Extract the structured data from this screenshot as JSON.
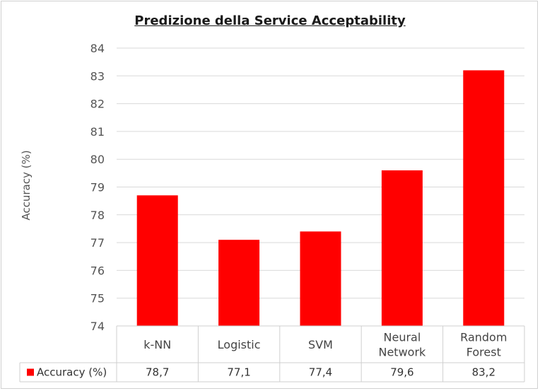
{
  "chart_data": {
    "type": "bar",
    "title": "Predizione della Service Acceptability",
    "xlabel": "",
    "ylabel": "Accuracy (%)",
    "ylim": [
      74,
      84
    ],
    "yticks": [
      74,
      75,
      76,
      77,
      78,
      79,
      80,
      81,
      82,
      83,
      84
    ],
    "grid": true,
    "categories": [
      [
        "k-NN"
      ],
      [
        "Logistic"
      ],
      [
        "SVM"
      ],
      [
        "Neural",
        "Network"
      ],
      [
        "Random",
        "Forest"
      ]
    ],
    "series": [
      {
        "name": "Accuracy (%)",
        "values": [
          78.7,
          77.1,
          77.4,
          79.6,
          83.2
        ],
        "labels": [
          "78,7",
          "77,1",
          "77,4",
          "79,6",
          "83,2"
        ],
        "color": "#ff0000"
      }
    ],
    "legend": "data-table-bottom-left"
  }
}
